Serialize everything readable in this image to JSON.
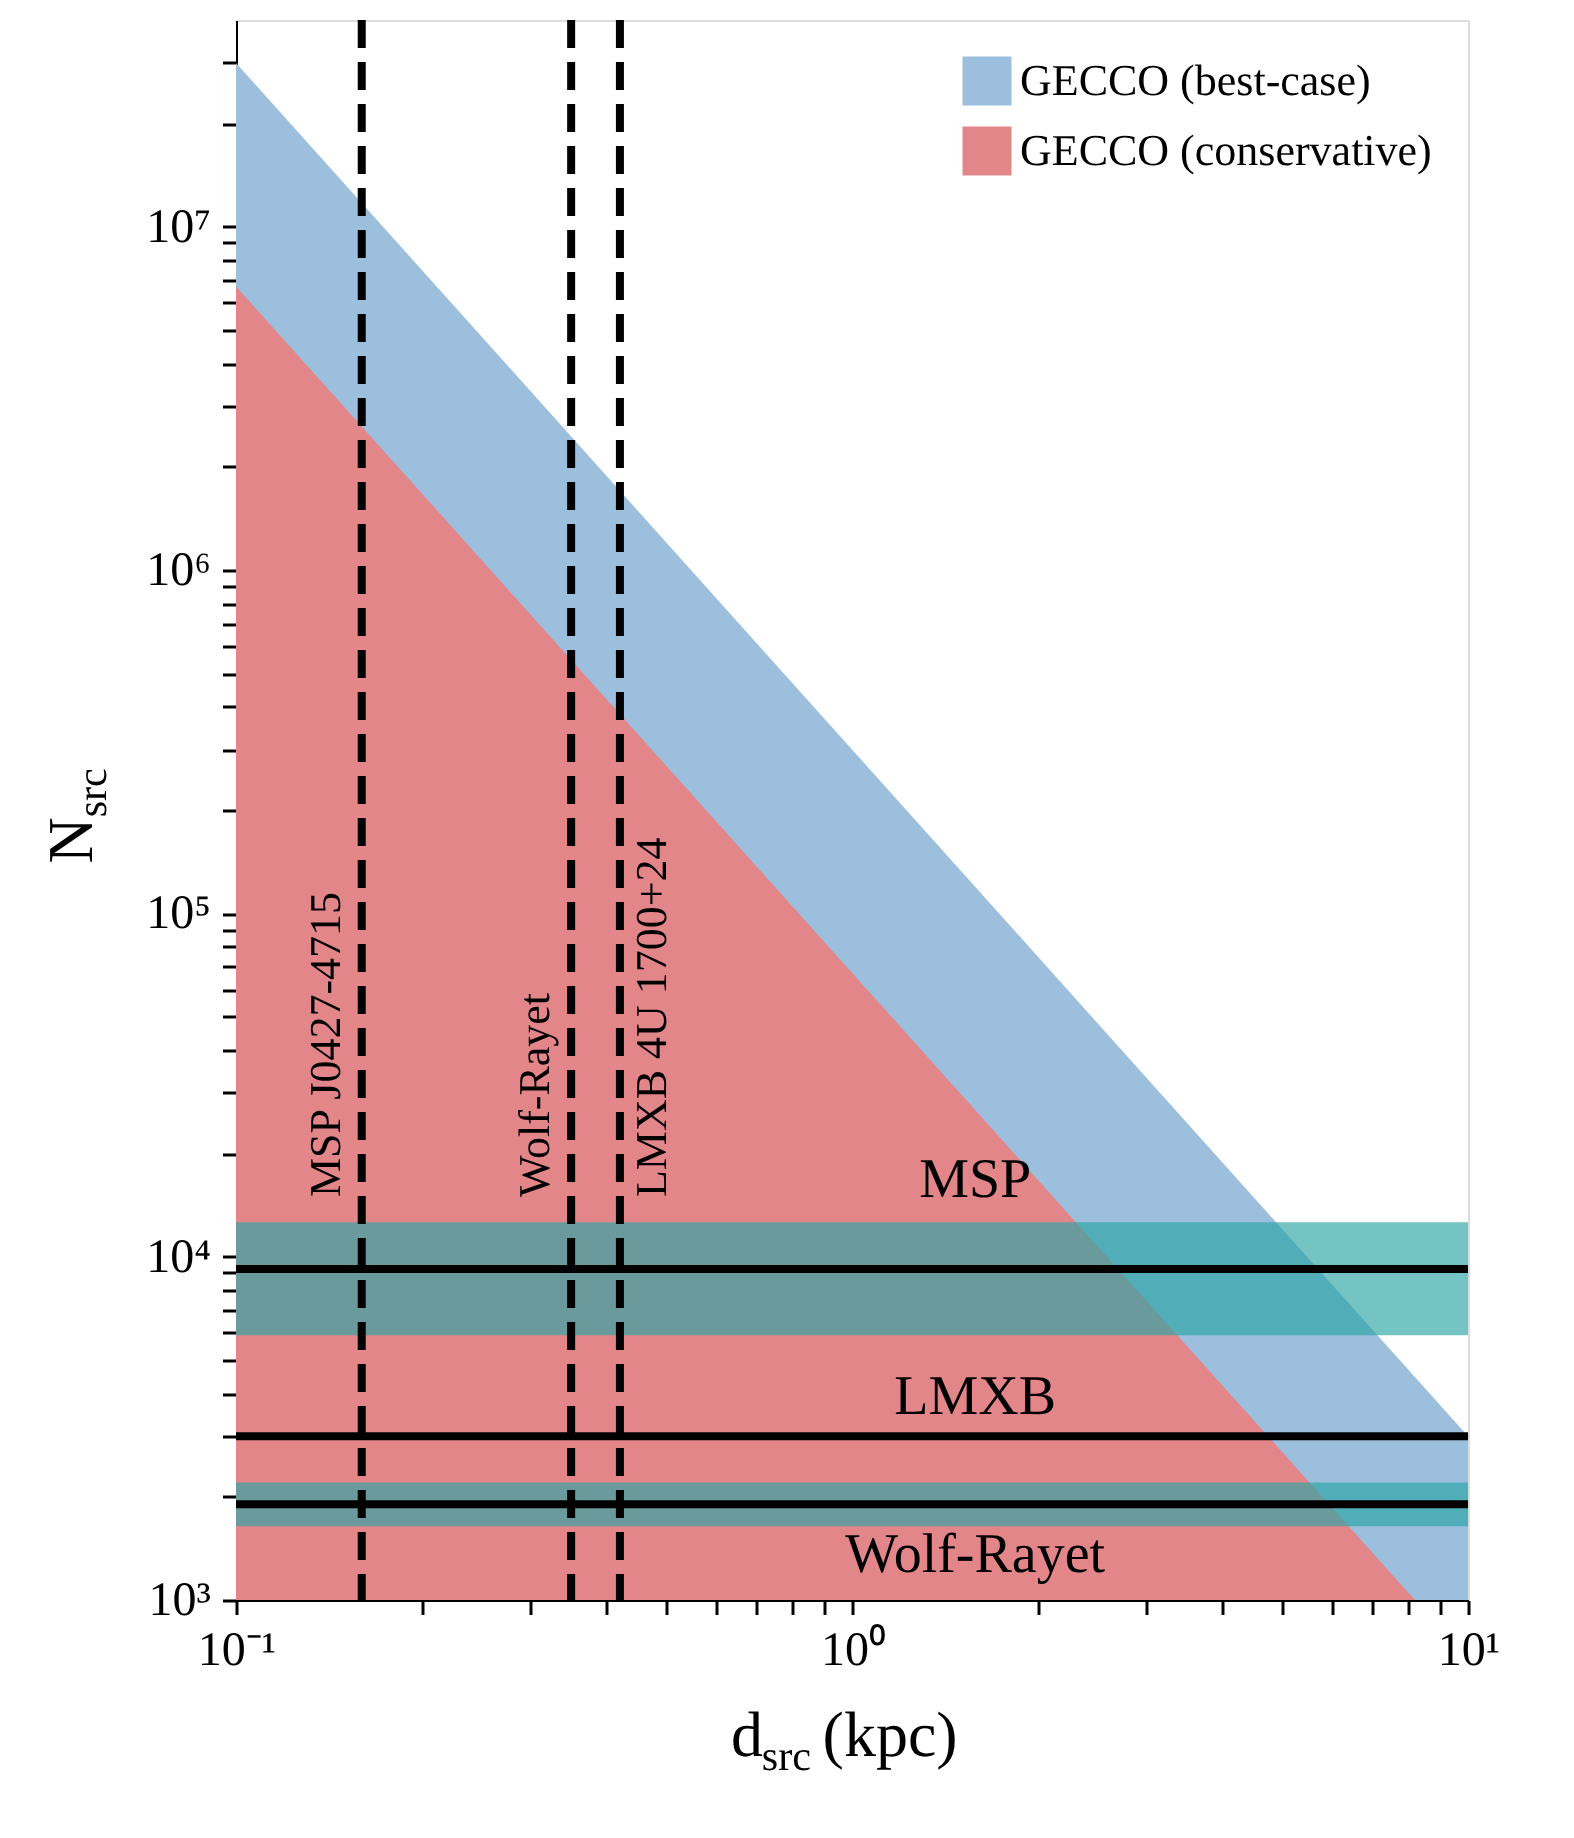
{
  "chart_data": {
    "type": "area",
    "xlabel": "d$_{src}$ (kpc)",
    "ylabel": "N$_{src}$",
    "log": "xy",
    "grid": false,
    "legend": "top right",
    "xlim": [
      0.1,
      10
    ],
    "ylim": [
      1000,
      40000000
    ],
    "xticks": [
      {
        "value": 0.1,
        "label": "10⁻¹"
      },
      {
        "value": 0.2,
        "label": null
      },
      {
        "value": 0.3,
        "label": null
      },
      {
        "value": 0.4,
        "label": null
      },
      {
        "value": 0.5,
        "label": null
      },
      {
        "value": 0.6,
        "label": null
      },
      {
        "value": 0.7,
        "label": null
      },
      {
        "value": 0.8,
        "label": null
      },
      {
        "value": 0.9,
        "label": null
      },
      {
        "value": 1,
        "label": "10⁰"
      },
      {
        "value": 2,
        "label": null
      },
      {
        "value": 3,
        "label": null
      },
      {
        "value": 4,
        "label": null
      },
      {
        "value": 5,
        "label": null
      },
      {
        "value": 6,
        "label": null
      },
      {
        "value": 7,
        "label": null
      },
      {
        "value": 8,
        "label": null
      },
      {
        "value": 9,
        "label": null
      },
      {
        "value": 10,
        "label": "10¹"
      }
    ],
    "yticks": [
      {
        "value": 1000,
        "label": "10³"
      },
      {
        "value": 2000,
        "label": null
      },
      {
        "value": 3000,
        "label": null
      },
      {
        "value": 4000,
        "label": null
      },
      {
        "value": 5000,
        "label": null
      },
      {
        "value": 6000,
        "label": null
      },
      {
        "value": 7000,
        "label": null
      },
      {
        "value": 8000,
        "label": null
      },
      {
        "value": 9000,
        "label": null
      },
      {
        "value": 10000,
        "label": "10⁴"
      },
      {
        "value": 20000,
        "label": null
      },
      {
        "value": 30000,
        "label": null
      },
      {
        "value": 40000,
        "label": null
      },
      {
        "value": 50000,
        "label": null
      },
      {
        "value": 60000,
        "label": null
      },
      {
        "value": 70000,
        "label": null
      },
      {
        "value": 80000,
        "label": null
      },
      {
        "value": 90000,
        "label": null
      },
      {
        "value": 100000,
        "label": "10⁵"
      },
      {
        "value": 200000,
        "label": null
      },
      {
        "value": 300000,
        "label": null
      },
      {
        "value": 400000,
        "label": null
      },
      {
        "value": 500000,
        "label": null
      },
      {
        "value": 600000,
        "label": null
      },
      {
        "value": 700000,
        "label": null
      },
      {
        "value": 800000,
        "label": null
      },
      {
        "value": 900000,
        "label": null
      },
      {
        "value": 1000000,
        "label": "10⁶"
      },
      {
        "value": 2000000,
        "label": null
      },
      {
        "value": 3000000,
        "label": null
      },
      {
        "value": 4000000,
        "label": null
      },
      {
        "value": 5000000,
        "label": null
      },
      {
        "value": 6000000,
        "label": null
      },
      {
        "value": 7000000,
        "label": null
      },
      {
        "value": 8000000,
        "label": null
      },
      {
        "value": 9000000,
        "label": null
      },
      {
        "value": 10000000,
        "label": "10⁷"
      },
      {
        "value": 20000000,
        "label": null
      },
      {
        "value": 30000000,
        "label": null
      }
    ],
    "series": [
      {
        "name": "GECCO (best-case)",
        "color": "#9bbfdc",
        "x": [
          0.1,
          10
        ],
        "values": [
          30000000,
          3000
        ]
      },
      {
        "name": "GECCO (conservative)",
        "color": "#e3868a",
        "x": [
          0.1,
          8.2
        ],
        "values": [
          6700000,
          1000
        ]
      }
    ],
    "bands": [
      {
        "axis": "y",
        "from": 5900,
        "to": 12600,
        "color": "#2aa5a5"
      },
      {
        "axis": "y",
        "from": 1640,
        "to": 2200,
        "color": "#2aa5a5"
      }
    ],
    "ref_lines": [
      {
        "axis": "y",
        "value": 9200,
        "label": "MSP",
        "color": "#000000",
        "line_style": "solid"
      },
      {
        "axis": "y",
        "value": 3000,
        "label": "LMXB",
        "color": "#000000",
        "line_style": "solid"
      },
      {
        "axis": "y",
        "value": 1900,
        "label": "Wolf-Rayet",
        "color": "#000000",
        "line_style": "solid"
      },
      {
        "axis": "x",
        "value": 0.16,
        "label": "MSP  J0427-4715",
        "color": "#000000",
        "line_style": "dashed"
      },
      {
        "axis": "x",
        "value": 0.35,
        "label": "Wolf-Rayet",
        "color": "#000000",
        "line_style": "dashed"
      },
      {
        "axis": "x",
        "value": 0.42,
        "label": "LMXB  4U  1700+24",
        "color": "#000000",
        "line_style": "dashed"
      }
    ]
  }
}
